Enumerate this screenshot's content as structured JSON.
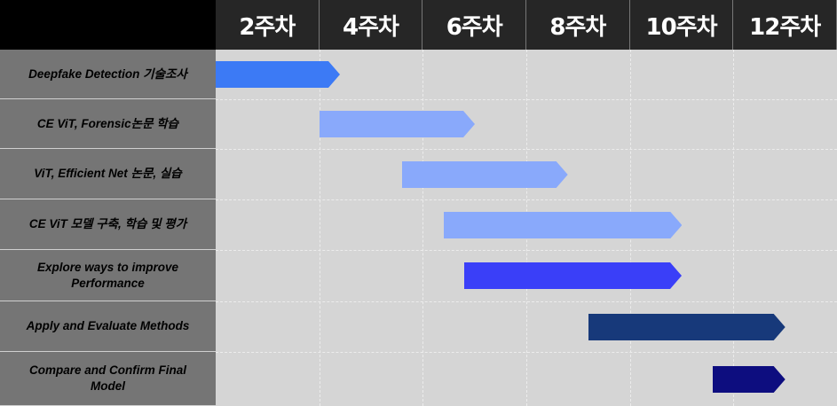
{
  "weeks": [
    "2주차",
    "4주차",
    "6주차",
    "8주차",
    "10주차",
    "12주차"
  ],
  "tasks": [
    {
      "label": "Deepfake Detection 기술조사",
      "start": 1,
      "end": 2.2,
      "color": "#3c7af5"
    },
    {
      "label": "CE ViT, Forensic논문 학습",
      "start": 2,
      "end": 3.5,
      "color": "#89a9fb"
    },
    {
      "label": "ViT, Efficient Net 논문, 실습",
      "start": 2.8,
      "end": 4.4,
      "color": "#89a9fb"
    },
    {
      "label": "CE ViT 모델 구축, 학습 및 평가",
      "start": 3.2,
      "end": 5.5,
      "color": "#89a9fb"
    },
    {
      "label": "Explore ways to improve\nPerformance",
      "start": 3.4,
      "end": 5.5,
      "color": "#3a3ff8"
    },
    {
      "label": "Apply and Evaluate Methods",
      "start": 4.6,
      "end": 6.5,
      "color": "#17397a"
    },
    {
      "label": "Compare and Confirm Final\nModel",
      "start": 5.8,
      "end": 6.5,
      "color": "#0d0d7f"
    }
  ]
}
